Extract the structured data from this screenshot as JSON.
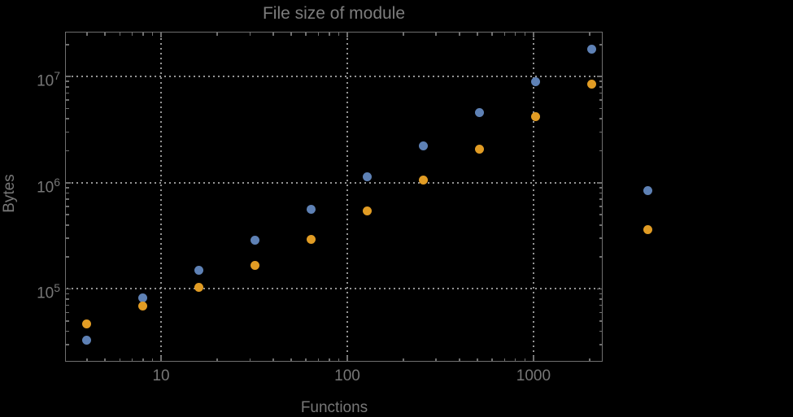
{
  "chart_data": {
    "type": "scatter",
    "title": "File size of module",
    "xlabel": "Functions",
    "ylabel": "Bytes",
    "x_scale": "log",
    "y_scale": "log",
    "xlim": [
      3.08,
      2330
    ],
    "ylim": [
      21000,
      26000000
    ],
    "x_major_ticks": [
      10,
      100,
      1000
    ],
    "x_tick_labels": [
      "10",
      "100",
      "1000"
    ],
    "y_major_ticks": [
      100000,
      1000000,
      10000000
    ],
    "y_tick_labels": [
      "10^5",
      "10^6",
      "10^7"
    ],
    "grid": "dotted gridlines at major ticks only",
    "legend_position": "none",
    "note": "points at x=4096 fall outside the right edge of the plot frame",
    "series": [
      {
        "name": "blue-series",
        "color": "#5E81B5",
        "points": [
          [
            4,
            33000
          ],
          [
            8,
            82000
          ],
          [
            16,
            150000
          ],
          [
            32,
            290000
          ],
          [
            64,
            560000
          ],
          [
            128,
            1130000
          ],
          [
            256,
            2240000
          ],
          [
            512,
            4550000
          ],
          [
            1024,
            9000000
          ],
          [
            2048,
            18000000
          ],
          [
            4096,
            840000
          ]
        ]
      },
      {
        "name": "orange-series",
        "color": "#E19C24",
        "points": [
          [
            4,
            47000
          ],
          [
            8,
            69000
          ],
          [
            16,
            103000
          ],
          [
            32,
            167000
          ],
          [
            64,
            295000
          ],
          [
            128,
            540000
          ],
          [
            256,
            1060000
          ],
          [
            512,
            2080000
          ],
          [
            1024,
            4160000
          ],
          [
            2048,
            8500000
          ],
          [
            4096,
            360000
          ]
        ]
      }
    ]
  },
  "colors": {
    "background": "#000000",
    "frame": "#6f6f6f",
    "gridline": "#949494",
    "text": "#777777"
  }
}
